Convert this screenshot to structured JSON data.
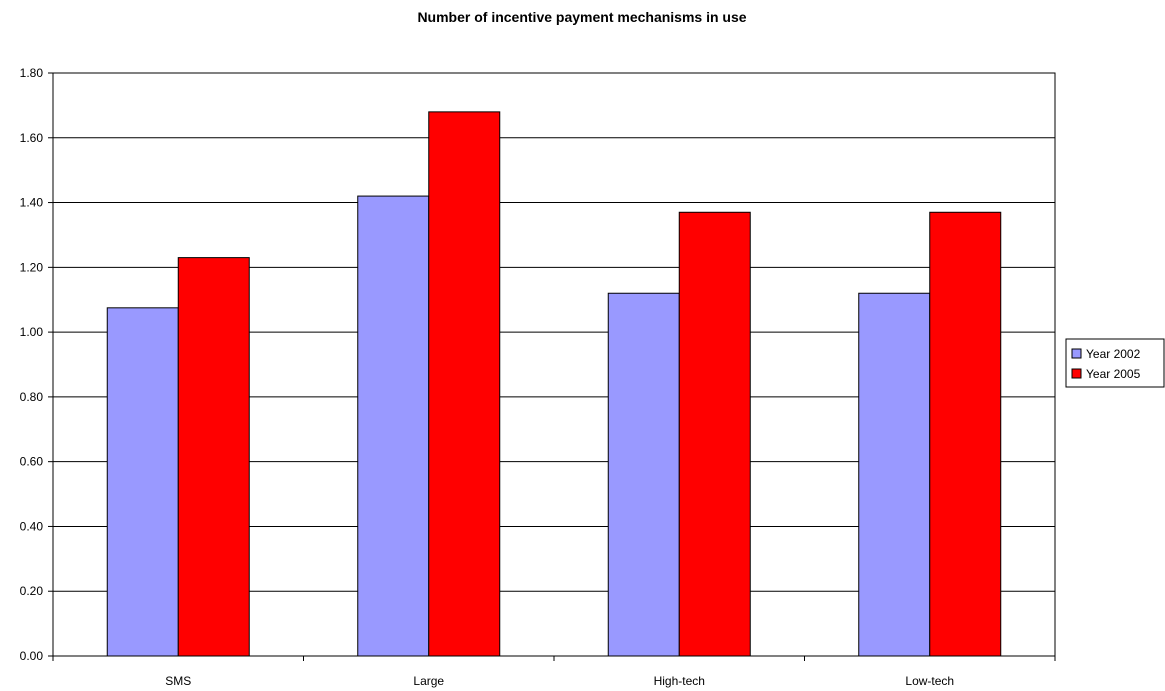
{
  "chart_data": {
    "type": "bar",
    "title": "Number of incentive payment mechanisms in use",
    "xlabel": "",
    "ylabel": "",
    "categories": [
      "SMS",
      "Large",
      "High-tech",
      "Low-tech"
    ],
    "series": [
      {
        "name": "Year 2002",
        "color": "#9999ff",
        "values": [
          1.075,
          1.42,
          1.12,
          1.12
        ]
      },
      {
        "name": "Year 2005",
        "color": "#ff0000",
        "values": [
          1.23,
          1.68,
          1.37,
          1.37
        ]
      }
    ],
    "ylim": [
      0,
      1.8
    ],
    "yticks": [
      "0.00",
      "0.20",
      "0.40",
      "0.60",
      "0.80",
      "1.00",
      "1.20",
      "1.40",
      "1.60",
      "1.80"
    ],
    "grid": true,
    "legend": "right"
  }
}
